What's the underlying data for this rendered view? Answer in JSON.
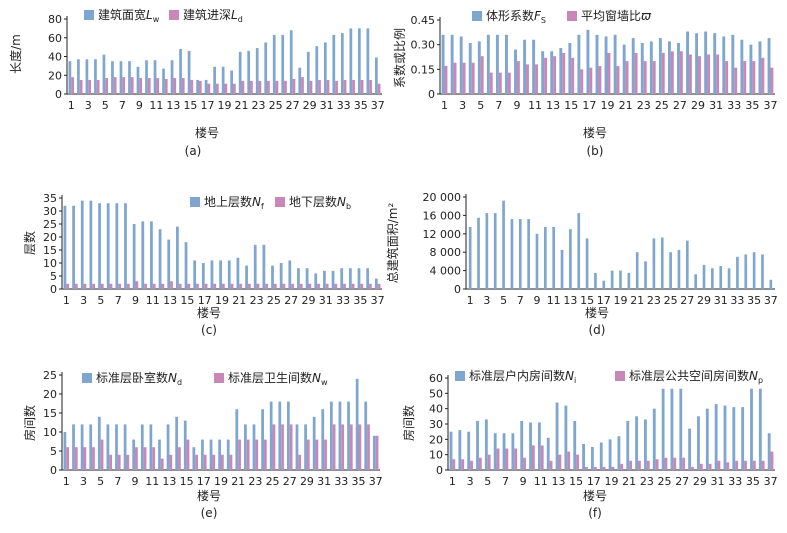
{
  "chart_data": [
    {
      "id": "a",
      "type": "bar",
      "caption": "(a)",
      "title": "",
      "xlabel": "楼号",
      "ylabel": "长度/m",
      "ylim": [
        0,
        80
      ],
      "yticks": [
        "0",
        "20",
        "40",
        "60",
        "80"
      ],
      "xtick_labels": [
        "1",
        "3",
        "5",
        "7",
        "9",
        "11",
        "13",
        "15",
        "17",
        "19",
        "21",
        "23",
        "25",
        "27",
        "29",
        "31",
        "33",
        "35",
        "37"
      ],
      "legend_position": "top-left",
      "series": [
        {
          "name": "建筑面宽",
          "symbol": "L",
          "sub": "w",
          "color": "#7ea6cf",
          "values": [
            35,
            37,
            37,
            37,
            42,
            35,
            35,
            35,
            29,
            36,
            36,
            27,
            36,
            48,
            46,
            15,
            15,
            29,
            29,
            25,
            45,
            46,
            49,
            55,
            63,
            63,
            68,
            28,
            45,
            51,
            55,
            63,
            65,
            70,
            70,
            70,
            39
          ]
        },
        {
          "name": "建筑进深",
          "symbol": "L",
          "sub": "d",
          "color": "#c987b8",
          "values": [
            18,
            15,
            15,
            15,
            17,
            18,
            18,
            18,
            17,
            17,
            17,
            16,
            17,
            17,
            15,
            14,
            11,
            11,
            11,
            11,
            14,
            14,
            14,
            14,
            14,
            14,
            16,
            18,
            14,
            15,
            15,
            14,
            15,
            15,
            15,
            15,
            11
          ]
        }
      ]
    },
    {
      "id": "b",
      "type": "bar",
      "caption": "(b)",
      "title": "",
      "xlabel": "楼号",
      "ylabel": "系数或比例",
      "ylim": [
        0,
        0.45
      ],
      "yticks": [
        "0",
        "0.15",
        "0.30",
        "0.45"
      ],
      "xtick_labels": [
        "1",
        "3",
        "5",
        "7",
        "9",
        "11",
        "13",
        "15",
        "17",
        "19",
        "21",
        "23",
        "25",
        "27",
        "29",
        "31",
        "33",
        "35",
        "37"
      ],
      "legend_position": "top-left",
      "series": [
        {
          "name": "体形系数",
          "symbol": "F",
          "sub": "S",
          "color": "#7ea6cf",
          "values": [
            0.36,
            0.36,
            0.35,
            0.31,
            0.32,
            0.36,
            0.36,
            0.36,
            0.27,
            0.33,
            0.33,
            0.26,
            0.26,
            0.28,
            0.31,
            0.36,
            0.39,
            0.36,
            0.35,
            0.36,
            0.3,
            0.34,
            0.31,
            0.32,
            0.34,
            0.32,
            0.31,
            0.38,
            0.37,
            0.38,
            0.37,
            0.35,
            0.36,
            0.33,
            0.3,
            0.32,
            0.34
          ]
        },
        {
          "name": "平均窗墙比",
          "symbol": "ϖ",
          "sub": "",
          "color": "#c987b8",
          "values": [
            0.17,
            0.19,
            0.19,
            0.19,
            0.23,
            0.13,
            0.13,
            0.13,
            0.2,
            0.18,
            0.18,
            0.22,
            0.23,
            0.25,
            0.22,
            0.15,
            0.16,
            0.17,
            0.25,
            0.17,
            0.2,
            0.25,
            0.2,
            0.2,
            0.25,
            0.26,
            0.26,
            0.24,
            0.23,
            0.24,
            0.24,
            0.2,
            0.16,
            0.2,
            0.2,
            0.22,
            0.16
          ]
        }
      ]
    },
    {
      "id": "c",
      "type": "bar",
      "caption": "(c)",
      "title": "",
      "xlabel": "楼号",
      "ylabel": "层数",
      "ylim": [
        0,
        35
      ],
      "yticks": [
        "0",
        "5",
        "10",
        "15",
        "20",
        "25",
        "30",
        "35"
      ],
      "xtick_labels": [
        "1",
        "3",
        "5",
        "7",
        "9",
        "11",
        "13",
        "15",
        "17",
        "19",
        "21",
        "23",
        "25",
        "27",
        "29",
        "31",
        "33",
        "35",
        "37"
      ],
      "legend_position": "top-right",
      "series": [
        {
          "name": "地上层数",
          "symbol": "N",
          "sub": "f",
          "color": "#7ea6cf",
          "values": [
            32,
            32,
            34,
            34,
            33,
            33,
            33,
            33,
            25,
            26,
            26,
            23,
            19,
            24,
            18,
            11,
            10,
            11,
            11,
            11,
            12,
            9,
            17,
            17,
            9,
            10,
            11,
            8,
            8,
            6,
            7,
            7,
            8,
            8,
            8,
            8,
            4
          ]
        },
        {
          "name": "地下层数",
          "symbol": "N",
          "sub": "b",
          "color": "#c987b8",
          "values": [
            2,
            2,
            2,
            2,
            2,
            2,
            2,
            2,
            3,
            2,
            2,
            2,
            3,
            2,
            2,
            2,
            2,
            2,
            2,
            2,
            2,
            2,
            2,
            2,
            2,
            2,
            2,
            2,
            2,
            2,
            2,
            2,
            2,
            2,
            2,
            2,
            2
          ]
        }
      ]
    },
    {
      "id": "d",
      "type": "bar",
      "caption": "(d)",
      "title": "",
      "xlabel": "楼号",
      "ylabel": "总建筑面积/m²",
      "ylim": [
        0,
        20000
      ],
      "yticks": [
        "0",
        "4 000",
        "8 000",
        "12 000",
        "16 000",
        "20 000"
      ],
      "xtick_labels": [
        "1",
        "3",
        "5",
        "7",
        "9",
        "11",
        "13",
        "15",
        "17",
        "19",
        "21",
        "23",
        "25",
        "27",
        "29",
        "31",
        "33",
        "35",
        "37"
      ],
      "legend_position": "none",
      "series": [
        {
          "name": "总建筑面积",
          "symbol": "",
          "sub": "",
          "color": "#7ea6cf",
          "values": [
            13500,
            15500,
            16500,
            16500,
            19200,
            15200,
            15200,
            15200,
            12000,
            13500,
            13500,
            8500,
            13000,
            16500,
            11000,
            3500,
            1800,
            4000,
            4000,
            3500,
            8000,
            6000,
            11000,
            11200,
            8000,
            8500,
            10500,
            3200,
            5200,
            4500,
            5000,
            4500,
            7000,
            7500,
            8000,
            7500,
            2000
          ]
        }
      ]
    },
    {
      "id": "e",
      "type": "bar",
      "caption": "(e)",
      "title": "",
      "xlabel": "楼号",
      "ylabel": "房间数",
      "ylim": [
        0,
        25
      ],
      "yticks": [
        "0",
        "5",
        "10",
        "15",
        "20",
        "25"
      ],
      "xtick_labels": [
        "1",
        "3",
        "5",
        "7",
        "9",
        "11",
        "13",
        "15",
        "17",
        "19",
        "21",
        "23",
        "25",
        "27",
        "29",
        "31",
        "33",
        "35",
        "37"
      ],
      "legend_position": "top",
      "series": [
        {
          "name": "标准层卧室数",
          "symbol": "N",
          "sub": "d",
          "color": "#7ea6cf",
          "values": [
            10,
            12,
            12,
            12,
            14,
            12,
            12,
            12,
            8,
            12,
            12,
            8,
            12,
            14,
            13,
            6,
            8,
            8,
            8,
            8,
            16,
            12,
            12,
            16,
            18,
            18,
            18,
            12,
            12,
            14,
            16,
            18,
            18,
            18,
            24,
            18,
            9
          ]
        },
        {
          "name": "标准层卫生间数",
          "symbol": "N",
          "sub": "w",
          "color": "#c987b8",
          "values": [
            6,
            6,
            6,
            6,
            8,
            4,
            4,
            4,
            6,
            6,
            6,
            3,
            4,
            6,
            8,
            4,
            4,
            4,
            4,
            4,
            8,
            8,
            8,
            8,
            12,
            12,
            12,
            4,
            8,
            8,
            8,
            12,
            12,
            12,
            12,
            12,
            9
          ]
        }
      ]
    },
    {
      "id": "f",
      "type": "bar",
      "caption": "(f)",
      "title": "",
      "xlabel": "楼号",
      "ylabel": "房间数",
      "ylim": [
        0,
        60
      ],
      "yticks": [
        "0",
        "10",
        "20",
        "30",
        "40",
        "50",
        "60"
      ],
      "xtick_labels": [
        "1",
        "3",
        "5",
        "7",
        "9",
        "11",
        "13",
        "15",
        "17",
        "19",
        "21",
        "23",
        "25",
        "27",
        "29",
        "31",
        "33",
        "35",
        "37"
      ],
      "legend_position": "top",
      "series": [
        {
          "name": "标准层户内房间数",
          "symbol": "N",
          "sub": "i",
          "color": "#7ea6cf",
          "values": [
            25,
            26,
            25,
            32,
            33,
            24,
            24,
            24,
            32,
            31,
            31,
            21,
            44,
            42,
            32,
            17,
            15,
            18,
            20,
            22,
            32,
            35,
            33,
            40,
            53,
            53,
            53,
            27,
            35,
            40,
            43,
            42,
            41,
            41,
            53,
            53,
            24
          ]
        },
        {
          "name": "标准层公共空间房间数",
          "symbol": "N",
          "sub": "p",
          "color": "#c987b8",
          "values": [
            7,
            7,
            6,
            8,
            10,
            14,
            14,
            14,
            8,
            16,
            16,
            6,
            10,
            12,
            10,
            2,
            2,
            2,
            2,
            4,
            6,
            6,
            6,
            7,
            8,
            8,
            8,
            2,
            4,
            4,
            6,
            5,
            6,
            6,
            6,
            6,
            12
          ]
        }
      ]
    }
  ]
}
